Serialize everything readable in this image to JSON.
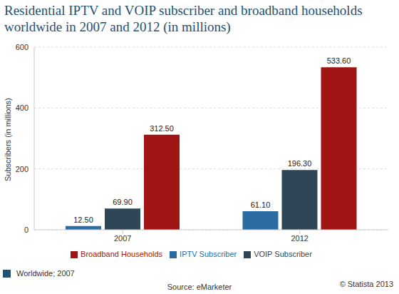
{
  "chart_data": {
    "type": "bar",
    "title": "Residential IPTV and VOIP subscriber and broadband households worldwide in 2007 and 2012 (in millions)",
    "y_label": "Subscribers (in millions)",
    "categories": [
      "2007",
      "2012"
    ],
    "series": [
      {
        "name": "IPTV Subscriber",
        "color": "#2b6ca3",
        "values": [
          12.5,
          61.1
        ],
        "value_labels": [
          "12.50",
          "61.10"
        ]
      },
      {
        "name": "VOIP Subscriber",
        "color": "#2f4657",
        "values": [
          69.9,
          196.3
        ],
        "value_labels": [
          "69.90",
          "196.30"
        ]
      },
      {
        "name": "Broadband Households",
        "color": "#a01414",
        "values": [
          312.5,
          533.6
        ],
        "value_labels": [
          "312.50",
          "533.60"
        ]
      }
    ],
    "ylim": [
      0,
      600
    ],
    "yticks": [
      0,
      200,
      400,
      600
    ],
    "grid": true,
    "legend": "bottom",
    "data_labels": true,
    "annotations": [
      "Worldwide; 2007",
      "Source: eMarketer",
      "© Statista 2013"
    ]
  }
}
